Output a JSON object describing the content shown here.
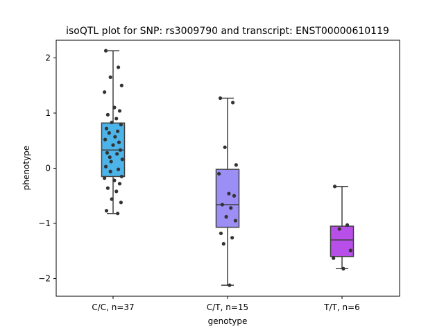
{
  "chart_data": {
    "type": "box",
    "title": "isoQTL plot for SNP: rs3009790 and transcript: ENST00000610119",
    "xlabel": "genotype",
    "ylabel": "phenotype",
    "ylim": [
      -2.32,
      2.32
    ],
    "yticks": [
      -2,
      -1,
      0,
      1,
      2
    ],
    "ytick_labels": [
      "−2",
      "−1",
      "0",
      "1",
      "2"
    ],
    "grid": false,
    "categories": [
      "C/C, n=37",
      "C/T, n=15",
      "T/T, n=6"
    ],
    "boxes": [
      {
        "category": "C/C, n=37",
        "color": "#4cb4e8",
        "whisker_low": -0.82,
        "q1": -0.15,
        "median": 0.33,
        "q3": 0.82,
        "whisker_high": 2.13,
        "points": [
          2.13,
          1.83,
          1.65,
          1.5,
          1.38,
          1.1,
          1.04,
          0.97,
          0.9,
          0.83,
          0.79,
          0.72,
          0.67,
          0.64,
          0.57,
          0.52,
          0.47,
          0.42,
          0.33,
          0.28,
          0.26,
          0.2,
          0.16,
          0.12,
          0.03,
          -0.02,
          -0.06,
          -0.15,
          -0.18,
          -0.22,
          -0.28,
          -0.36,
          -0.42,
          -0.56,
          -0.62,
          -0.77,
          -0.82
        ]
      },
      {
        "category": "C/T, n=15",
        "color": "#9b8ef5",
        "whisker_low": -2.12,
        "q1": -1.07,
        "median": -0.66,
        "q3": -0.02,
        "whisker_high": 1.27,
        "points": [
          1.27,
          1.19,
          0.38,
          0.06,
          -0.1,
          -0.46,
          -0.5,
          -0.66,
          -0.72,
          -0.88,
          -0.95,
          -1.18,
          -1.26,
          -1.37,
          -2.12
        ]
      },
      {
        "category": "T/T, n=6",
        "color": "#b84fe8",
        "whisker_low": -1.82,
        "q1": -1.6,
        "median": -1.3,
        "q3": -1.05,
        "whisker_high": -0.33,
        "points": [
          -0.33,
          -1.03,
          -1.1,
          -1.49,
          -1.63,
          -1.82
        ]
      }
    ]
  }
}
